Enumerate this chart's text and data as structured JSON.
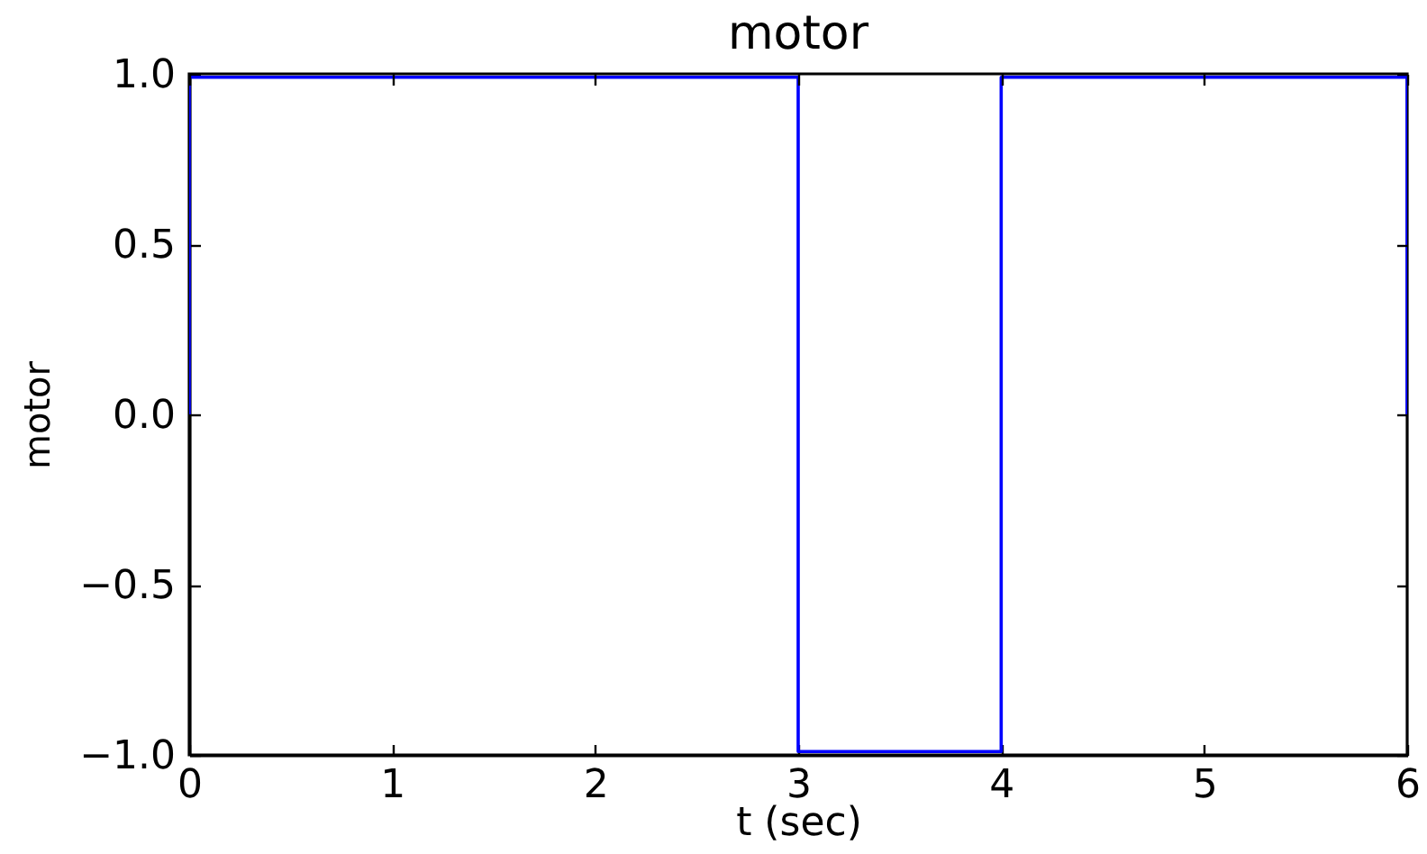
{
  "chart_data": {
    "type": "line",
    "title": "motor",
    "xlabel": "t (sec)",
    "ylabel": "motor",
    "series": [
      {
        "color": "#0000ff",
        "x": [
          0,
          0,
          3,
          3,
          4,
          4,
          6,
          6
        ],
        "values": [
          0,
          0.99,
          0.99,
          -0.99,
          -0.99,
          0.99,
          0.99,
          0
        ]
      }
    ],
    "xlim": [
      0,
      6
    ],
    "ylim": [
      -1,
      1
    ],
    "xticks": [
      0,
      1,
      2,
      3,
      4,
      5,
      6
    ],
    "yticks": [
      {
        "value": -1,
        "label": "−1.0"
      },
      {
        "value": -0.5,
        "label": "−0.5"
      },
      {
        "value": 0,
        "label": "0.0"
      },
      {
        "value": 0.5,
        "label": "0.5"
      },
      {
        "value": 1,
        "label": "1.0"
      }
    ]
  }
}
